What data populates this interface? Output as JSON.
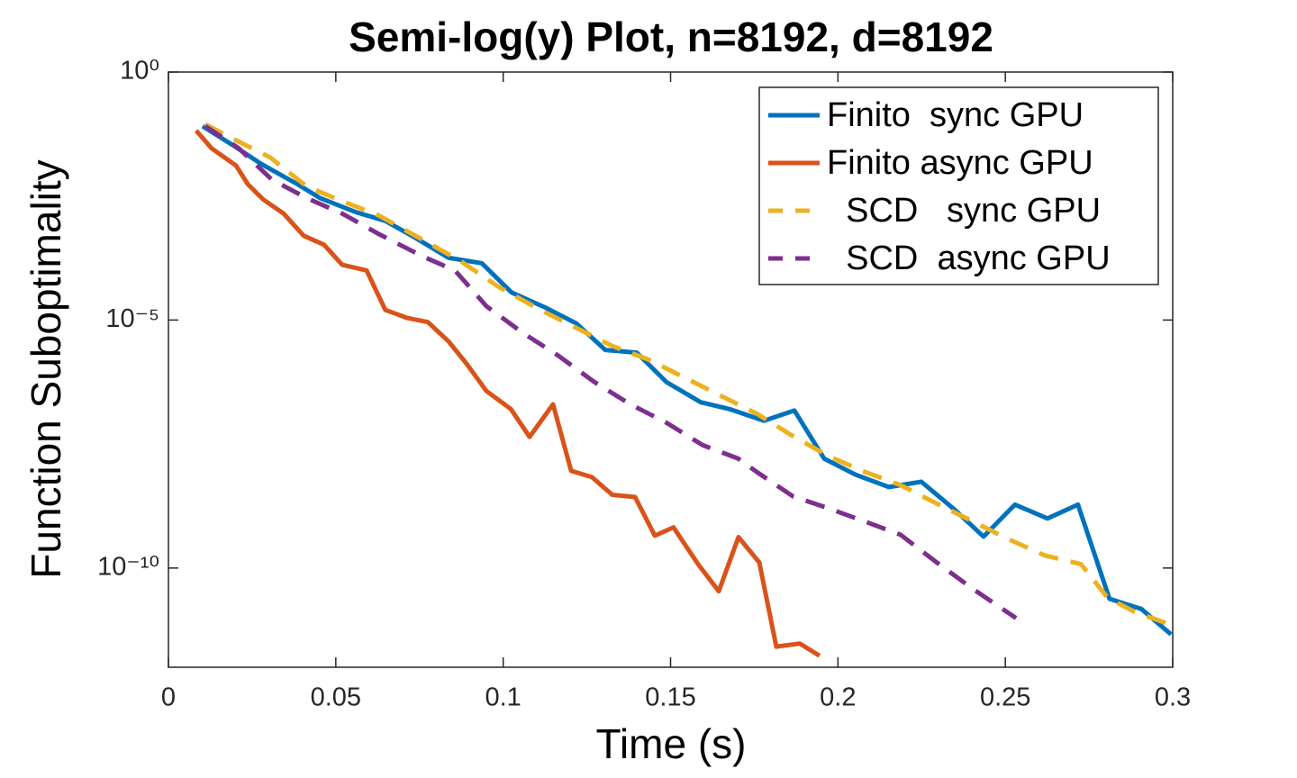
{
  "chart_data": {
    "type": "line",
    "title": "Semi-log(y) Plot, n=8192, d=8192",
    "x_label": "Time (s)",
    "y_label": "Function Suboptimality",
    "xlim": [
      0,
      0.3
    ],
    "xticks": [
      0,
      0.05,
      0.1,
      0.15,
      0.2,
      0.25,
      0.3
    ],
    "ylim": [
      1e-12,
      1
    ],
    "yscale": "log",
    "yticks": [
      {
        "value": 1,
        "label": "10⁰"
      },
      {
        "value": 1e-05,
        "label": "10⁻⁵"
      },
      {
        "value": 1e-10,
        "label": "10⁻¹⁰"
      }
    ],
    "legend": "upper right",
    "series": [
      {
        "name": "Finito  sync GPU",
        "color": "#0072BD",
        "dashed": false,
        "x": [
          0.0102,
          0.0197,
          0.0277,
          0.0385,
          0.0452,
          0.056,
          0.0648,
          0.0734,
          0.0837,
          0.0936,
          0.1025,
          0.1125,
          0.1219,
          0.1305,
          0.1399,
          0.1488,
          0.159,
          0.1676,
          0.1779,
          0.187,
          0.1959,
          0.2053,
          0.2152,
          0.2249,
          0.2349,
          0.2435,
          0.2529,
          0.2626,
          0.2717,
          0.2811,
          0.2906,
          0.2995
        ],
        "values": [
          0.081,
          0.032,
          0.014,
          0.0055,
          0.0029,
          0.0015,
          0.001,
          0.00047,
          0.00018,
          0.00014,
          3.6e-05,
          1.8e-05,
          8.5e-06,
          2.5e-06,
          2.2e-06,
          5.6e-07,
          2.2e-07,
          1.6e-07,
          9.3e-08,
          1.5e-07,
          1.6e-08,
          7.6e-09,
          4.3e-09,
          5.5e-09,
          1.5e-09,
          4.3e-10,
          1.9e-09,
          1e-09,
          1.9e-09,
          2.4e-11,
          1.5e-11,
          4.6e-12
        ]
      },
      {
        "name": "Finito async GPU",
        "color": "#D95319",
        "dashed": false,
        "x": [
          0.0083,
          0.0129,
          0.0202,
          0.0237,
          0.0283,
          0.0344,
          0.0404,
          0.0465,
          0.0519,
          0.0592,
          0.0648,
          0.0713,
          0.0775,
          0.0837,
          0.0891,
          0.095,
          0.1023,
          0.1079,
          0.1149,
          0.1203,
          0.1265,
          0.1326,
          0.1394,
          0.1453,
          0.1509,
          0.1582,
          0.1644,
          0.1703,
          0.1765,
          0.1816,
          0.1886,
          0.1945
        ],
        "values": [
          0.066,
          0.029,
          0.013,
          0.0055,
          0.0027,
          0.0014,
          0.0005,
          0.00033,
          0.00013,
          0.0001,
          1.6e-05,
          1.1e-05,
          9.1e-06,
          3.7e-06,
          1.3e-06,
          3.7e-07,
          1.6e-07,
          4.4e-08,
          2e-07,
          9.1e-09,
          6.8e-09,
          3e-09,
          2.7e-09,
          4.5e-10,
          6.6e-10,
          1.2e-10,
          3.4e-11,
          4.2e-10,
          1.3e-10,
          2.6e-12,
          3e-12,
          1.7e-12
        ]
      },
      {
        "name": "  SCD   sync GPU",
        "color": "#EDB120",
        "dashed": true,
        "x": [
          0.011,
          0.0196,
          0.0304,
          0.0412,
          0.0506,
          0.0627,
          0.0761,
          0.0869,
          0.099,
          0.1111,
          0.1219,
          0.1326,
          0.1434,
          0.1542,
          0.1649,
          0.1757,
          0.1865,
          0.1972,
          0.208,
          0.2187,
          0.2295,
          0.2403,
          0.251,
          0.2618,
          0.2726,
          0.2806,
          0.2887,
          0.2995
        ],
        "values": [
          0.089,
          0.044,
          0.019,
          0.005,
          0.0027,
          0.0013,
          0.00041,
          0.00016,
          4.5e-05,
          1.6e-05,
          6.9e-06,
          3e-06,
          1.6e-06,
          6.9e-07,
          3e-07,
          1.3e-07,
          4.6e-08,
          1.8e-08,
          8.7e-09,
          4.7e-09,
          2e-09,
          8.7e-10,
          3.8e-10,
          1.8e-10,
          1.2e-10,
          2.5e-11,
          1.3e-11,
          7.2e-12
        ]
      },
      {
        "name": "  SCD  async GPU",
        "color": "#7E2F8E",
        "dashed": true,
        "x": [
          0.011,
          0.021,
          0.0309,
          0.0412,
          0.0519,
          0.0627,
          0.0761,
          0.0856,
          0.095,
          0.1057,
          0.1165,
          0.1273,
          0.138,
          0.1488,
          0.1596,
          0.1703,
          0.1757,
          0.1865,
          0.1972,
          0.208,
          0.2187,
          0.2295,
          0.2403,
          0.2532
        ],
        "values": [
          0.081,
          0.029,
          0.0068,
          0.0029,
          0.0014,
          0.00055,
          0.00019,
          0.0001,
          1.9e-05,
          5.6e-06,
          1.9e-06,
          5.6e-07,
          2e-07,
          8.5e-08,
          3e-08,
          1.6e-08,
          8.7e-09,
          2.8e-09,
          1.6e-09,
          8.7e-10,
          4.7e-10,
          1.3e-10,
          3.8e-11,
          9.8e-12
        ]
      }
    ]
  }
}
